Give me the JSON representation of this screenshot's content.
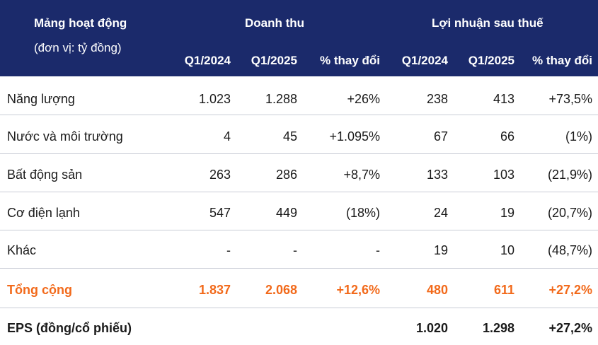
{
  "header": {
    "segment_title": "Mảng hoạt động",
    "segment_unit": "(đơn vị: tỷ đồng)",
    "revenue_group": "Doanh thu",
    "profit_group": "Lợi nhuận sau thuế",
    "columns": [
      "Q1/2024",
      "Q1/2025",
      "% thay đổi",
      "Q1/2024",
      "Q1/2025",
      "% thay đổi"
    ]
  },
  "rows": [
    {
      "label": "Năng lượng",
      "values": [
        "1.023",
        "1.288",
        "+26%",
        "238",
        "413",
        "+73,5%"
      ]
    },
    {
      "label": "Nước và môi trường",
      "values": [
        "4",
        "45",
        "+1.095%",
        "67",
        "66",
        "(1%)"
      ]
    },
    {
      "label": "Bất động sản",
      "values": [
        "263",
        "286",
        "+8,7%",
        "133",
        "103",
        "(21,9%)"
      ]
    },
    {
      "label": "Cơ điện lạnh",
      "values": [
        "547",
        "449",
        "(18%)",
        "24",
        "19",
        "(20,7%)"
      ]
    },
    {
      "label": "Khác",
      "values": [
        "-",
        "-",
        "-",
        "19",
        "10",
        "(48,7%)"
      ]
    }
  ],
  "total": {
    "label": "Tổng cộng",
    "values": [
      "1.837",
      "2.068",
      "+12,6%",
      "480",
      "611",
      "+27,2%"
    ]
  },
  "eps": {
    "label": "EPS (đồng/cổ phiếu)",
    "values": [
      "",
      "",
      "",
      "1.020",
      "1.298",
      "+27,2%"
    ]
  },
  "colors": {
    "header_bg": "#1b2a6b",
    "total_text": "#f26a1b",
    "divider": "#c9ccd6"
  }
}
